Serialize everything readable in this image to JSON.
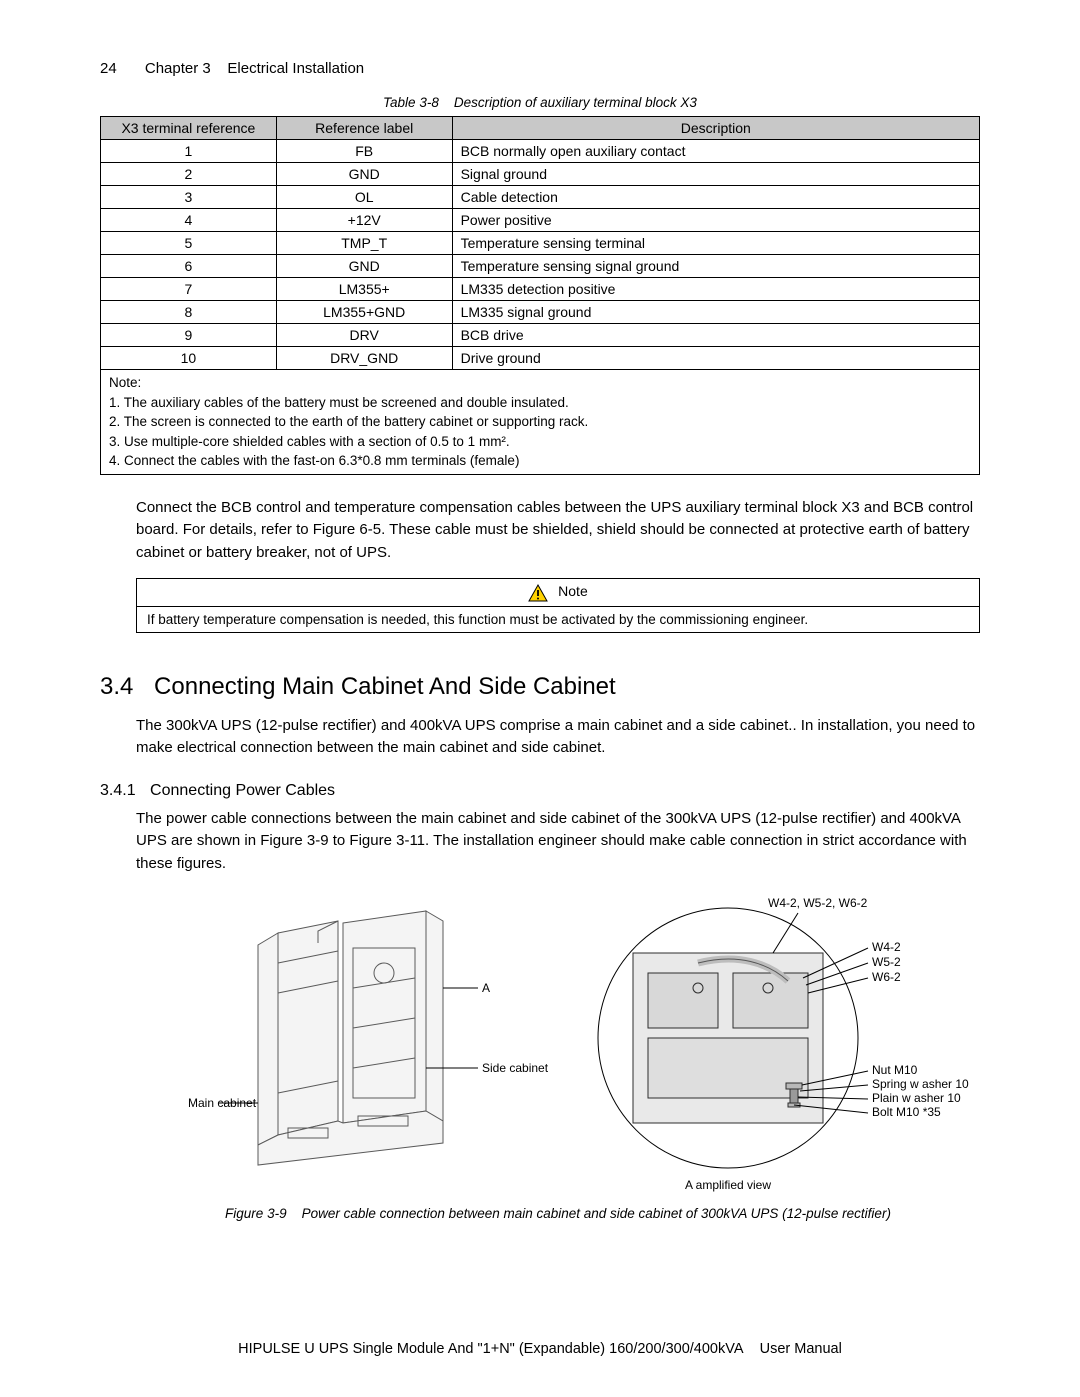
{
  "header": {
    "page_number": "24",
    "chapter": "Chapter 3",
    "title": "Electrical Installation"
  },
  "table": {
    "caption_prefix": "Table 3-8",
    "caption_text": "Description of auxiliary terminal block X3",
    "columns": [
      "X3 terminal reference",
      "Reference label",
      "Description"
    ],
    "rows": [
      [
        "1",
        "FB",
        "BCB normally open auxiliary contact"
      ],
      [
        "2",
        "GND",
        "Signal ground"
      ],
      [
        "3",
        "OL",
        "Cable detection"
      ],
      [
        "4",
        "+12V",
        "Power positive"
      ],
      [
        "5",
        "TMP_T",
        "Temperature sensing terminal"
      ],
      [
        "6",
        "GND",
        "Temperature sensing signal ground"
      ],
      [
        "7",
        "LM355+",
        "LM335 detection positive"
      ],
      [
        "8",
        "LM355+GND",
        "LM335 signal ground"
      ],
      [
        "9",
        "DRV",
        "BCB drive"
      ],
      [
        "10",
        "DRV_GND",
        "Drive ground"
      ]
    ],
    "notes_title": "Note:",
    "notes": [
      "1. The auxiliary cables of the battery must be screened and double insulated.",
      "2. The screen is connected to the earth of the battery cabinet or supporting rack.",
      "3. Use multiple-core shielded cables with a section of 0.5 to 1 mm².",
      "4. Connect the cables with the fast-on 6.3*0.8 mm terminals (female)"
    ]
  },
  "para1": "Connect the BCB control and temperature compensation cables between the UPS auxiliary terminal block X3 and BCB control board. For details, refer to Figure 6-5. These cable must be shielded, shield should be connected at protective earth of battery cabinet or battery breaker, not of UPS.",
  "notebox": {
    "title": "Note",
    "body": "If battery temperature compensation is needed, this function must be activated by the commissioning engineer."
  },
  "section": {
    "num": "3.4",
    "title": "Connecting Main Cabinet And Side Cabinet",
    "intro": "The 300kVA UPS (12-pulse rectifier) and 400kVA UPS comprise a main cabinet and a side cabinet.. In installation, you need to make electrical connection between the main cabinet and side cabinet."
  },
  "subsection": {
    "num": "3.4.1",
    "title": "Connecting Power Cables",
    "text": "The power cable connections between the main cabinet and side cabinet of the 300kVA UPS (12-pulse rectifier) and 400kVA UPS are shown in Figure 3-9 to Figure 3-11. The installation engineer should make cable connection in strict accordance with these figures."
  },
  "figure": {
    "caption_prefix": "Figure 3-9",
    "caption_text": "Power cable connection between main cabinet and side cabinet of 300kVA UPS (12-pulse rectifier)",
    "labels": {
      "main_cabinet": "Main cabinet",
      "side_cabinet": "Side cabinet",
      "A": "A",
      "amplified": "A amplified view",
      "top_group": "W4-2, W5-2, W6-2",
      "w4": "W4-2",
      "w5": "W5-2",
      "w6": "W6-2",
      "nut": "Nut M10",
      "spring": "Spring w asher 10",
      "plain": "Plain w asher 10",
      "bolt": "Bolt M10 *35"
    },
    "colors": {
      "stroke": "#5a5a5a",
      "fill": "#f4f4f4",
      "dark": "#2d2d2d"
    }
  },
  "footer": {
    "left": "HIPULSE U UPS Single Module And \"1+N\" (Expandable) 160/200/300/400kVA",
    "right": "User Manual"
  }
}
